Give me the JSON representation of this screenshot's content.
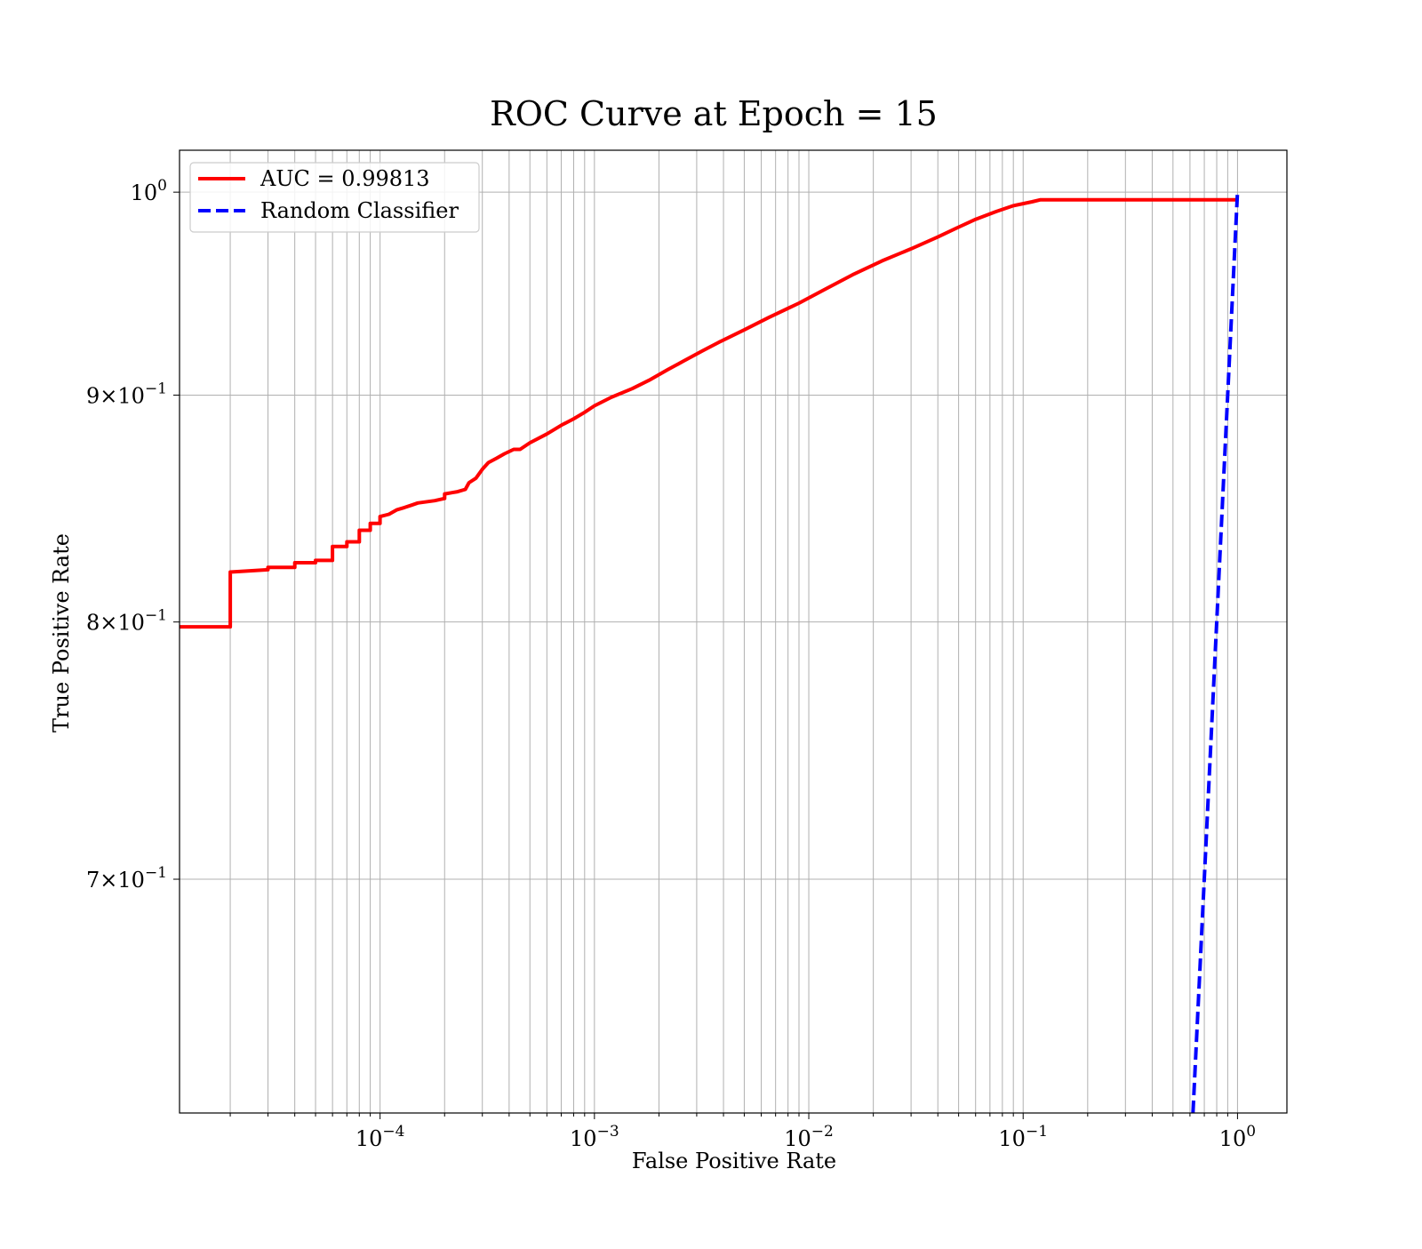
{
  "chart_data": {
    "type": "line",
    "title": "ROC Curve at Epoch = 15",
    "xlabel": "False Positive Rate",
    "ylabel": "True Positive Rate",
    "x_scale": "log",
    "y_scale": "log",
    "xlim": [
      1.16e-05,
      1.7
    ],
    "ylim": [
      0.62,
      1.022
    ],
    "grid": "both (major and minor)",
    "legend_position": "top-left",
    "x_ticks": [
      {
        "base": "10",
        "exp": "−4",
        "value": 0.0001
      },
      {
        "base": "10",
        "exp": "−3",
        "value": 0.001
      },
      {
        "base": "10",
        "exp": "−2",
        "value": 0.01
      },
      {
        "base": "10",
        "exp": "−1",
        "value": 0.1
      },
      {
        "base": "10",
        "exp": "0",
        "value": 1
      }
    ],
    "y_ticks": [
      {
        "coef": "",
        "base": "10",
        "exp": "0",
        "value": 1.0
      },
      {
        "coef": "9×",
        "base": "10",
        "exp": "−1",
        "value": 0.9
      },
      {
        "coef": "8×",
        "base": "10",
        "exp": "−1",
        "value": 0.8
      },
      {
        "coef": "7×",
        "base": "10",
        "exp": "−1",
        "value": 0.7
      }
    ],
    "series": [
      {
        "name": "AUC = 0.99813",
        "color": "#ff0000",
        "style": "solid",
        "x": [
          1.16e-05,
          2e-05,
          2e-05,
          3e-05,
          3e-05,
          4e-05,
          4e-05,
          5e-05,
          5e-05,
          6e-05,
          6e-05,
          7e-05,
          7e-05,
          8e-05,
          8e-05,
          9e-05,
          9e-05,
          0.0001,
          0.0001,
          0.00011,
          0.00012,
          0.00013,
          0.00014,
          0.00015,
          0.00018,
          0.0002,
          0.0002,
          0.00023,
          0.00025,
          0.00026,
          0.00028,
          0.0003,
          0.00032,
          0.00035,
          0.00038,
          0.00042,
          0.00045,
          0.0005,
          0.0006,
          0.0007,
          0.0008,
          0.0009,
          0.001,
          0.0012,
          0.0015,
          0.0018,
          0.0022,
          0.0026,
          0.0032,
          0.0038,
          0.005,
          0.0065,
          0.009,
          0.012,
          0.016,
          0.022,
          0.03,
          0.04,
          0.05,
          0.06,
          0.075,
          0.09,
          0.11,
          0.12,
          0.2,
          0.4,
          1.0
        ],
        "y": [
          0.798,
          0.798,
          0.821,
          0.822,
          0.823,
          0.823,
          0.825,
          0.825,
          0.826,
          0.826,
          0.832,
          0.832,
          0.834,
          0.834,
          0.839,
          0.839,
          0.842,
          0.842,
          0.845,
          0.846,
          0.848,
          0.849,
          0.85,
          0.851,
          0.852,
          0.853,
          0.855,
          0.856,
          0.857,
          0.86,
          0.862,
          0.866,
          0.869,
          0.871,
          0.873,
          0.875,
          0.875,
          0.878,
          0.882,
          0.886,
          0.889,
          0.892,
          0.895,
          0.899,
          0.903,
          0.907,
          0.912,
          0.916,
          0.921,
          0.925,
          0.931,
          0.937,
          0.944,
          0.951,
          0.958,
          0.965,
          0.971,
          0.977,
          0.982,
          0.986,
          0.99,
          0.993,
          0.995,
          0.996,
          0.996,
          0.996,
          0.996
        ]
      },
      {
        "name": "Random Classifier",
        "color": "#0000ff",
        "style": "dashed",
        "x": [
          0.62,
          1.0
        ],
        "y": [
          0.62,
          1.0
        ]
      }
    ]
  }
}
